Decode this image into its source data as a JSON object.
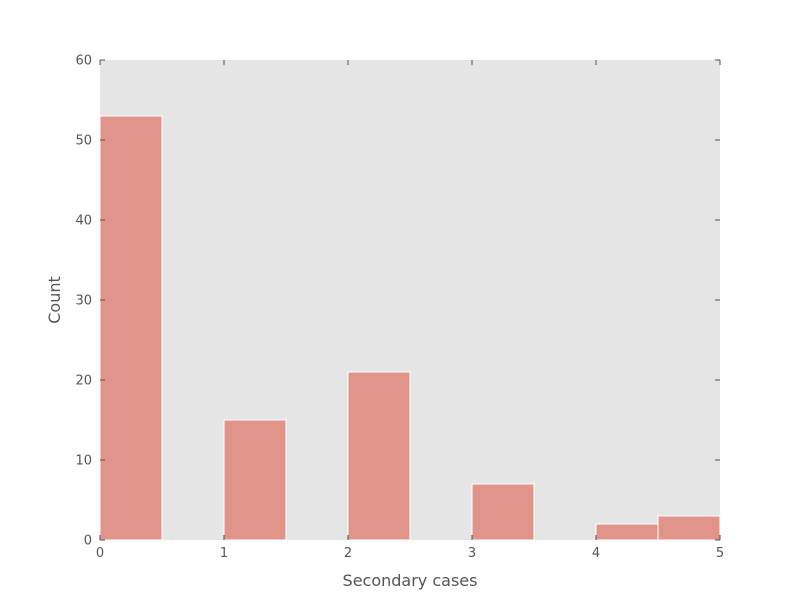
{
  "chart_data": {
    "type": "bar",
    "title": "",
    "xlabel": "Secondary cases",
    "ylabel": "Count",
    "xlim": [
      0,
      5
    ],
    "ylim": [
      0,
      60
    ],
    "xticks": [
      "0",
      "1",
      "2",
      "3",
      "4",
      "5"
    ],
    "yticks": [
      "0",
      "10",
      "20",
      "30",
      "40",
      "50",
      "60"
    ],
    "bins": [
      {
        "x0": 0.0,
        "x1": 0.5,
        "value": 53
      },
      {
        "x0": 0.5,
        "x1": 1.0,
        "value": 0
      },
      {
        "x0": 1.0,
        "x1": 1.5,
        "value": 15
      },
      {
        "x0": 1.5,
        "x1": 2.0,
        "value": 0
      },
      {
        "x0": 2.0,
        "x1": 2.5,
        "value": 21
      },
      {
        "x0": 2.5,
        "x1": 3.0,
        "value": 0
      },
      {
        "x0": 3.0,
        "x1": 3.5,
        "value": 7
      },
      {
        "x0": 3.5,
        "x1": 4.0,
        "value": 0
      },
      {
        "x0": 4.0,
        "x1": 4.5,
        "value": 2
      },
      {
        "x0": 4.5,
        "x1": 5.0,
        "value": 3
      }
    ],
    "grid": false,
    "bar_color": "#e1958a",
    "background_color": "#e5e5e5"
  }
}
